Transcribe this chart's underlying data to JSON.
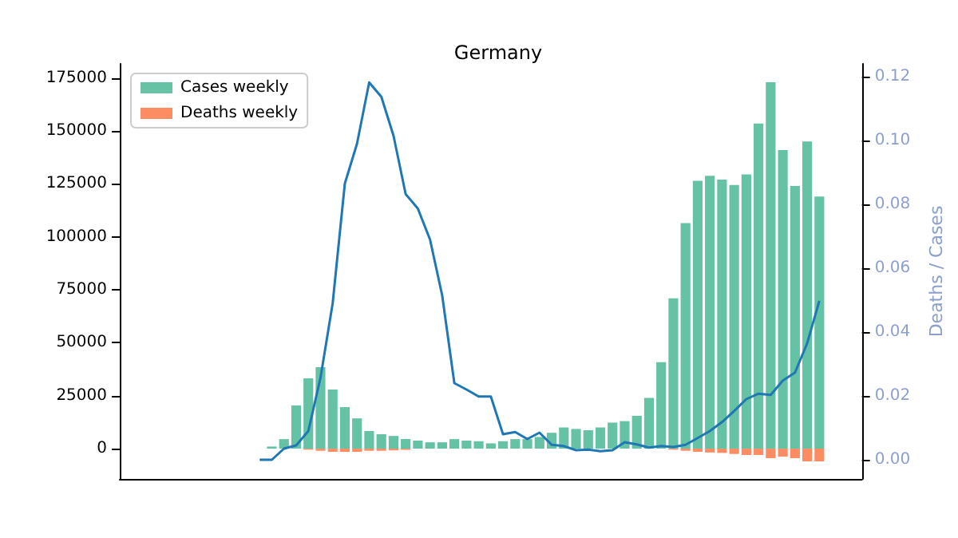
{
  "chart_data": {
    "type": "bar",
    "title": "Germany",
    "y2label": "Deaths / Cases",
    "categories": [
      null,
      null,
      null,
      null,
      null,
      null,
      null,
      null,
      null,
      null,
      null,
      null,
      null,
      null,
      null,
      null,
      null,
      null,
      null,
      null,
      null,
      null,
      null,
      null,
      null,
      null,
      null,
      null,
      null,
      null,
      null,
      null,
      null,
      null,
      null,
      null,
      null,
      null,
      null,
      null,
      null,
      null,
      null,
      null,
      null,
      null,
      null,
      null,
      null,
      null,
      null,
      null,
      null,
      null,
      null,
      null,
      null,
      null,
      null,
      null,
      null
    ],
    "stacked": true,
    "series": [
      {
        "name": "Cases weekly",
        "color": "#66c2a5",
        "values": [
          null,
          null,
          null,
          null,
          null,
          null,
          null,
          null,
          null,
          null,
          null,
          null,
          1000,
          4500,
          20400,
          33200,
          38500,
          27900,
          19600,
          14300,
          8300,
          6800,
          6000,
          4500,
          3800,
          3000,
          3000,
          4500,
          3800,
          3500,
          2500,
          3500,
          4500,
          4500,
          5500,
          7500,
          10000,
          9300,
          8700,
          10000,
          12300,
          13000,
          15500,
          24000,
          40800,
          71000,
          106500,
          126500,
          128800,
          127000,
          124500,
          129500,
          153500,
          173000,
          141000,
          124000,
          145000,
          119000,
          null,
          null,
          null
        ]
      },
      {
        "name": "Deaths weekly",
        "color": "#fc8d62",
        "values": [
          null,
          null,
          null,
          null,
          null,
          null,
          null,
          null,
          null,
          null,
          null,
          null,
          null,
          null,
          null,
          -500,
          -1000,
          -1500,
          -1500,
          -1500,
          -1000,
          -1000,
          -800,
          -500,
          null,
          null,
          null,
          null,
          null,
          null,
          null,
          null,
          null,
          null,
          null,
          null,
          null,
          null,
          null,
          null,
          null,
          null,
          null,
          null,
          null,
          -500,
          -1000,
          -1500,
          -1800,
          -2000,
          -2500,
          -3000,
          -3000,
          -4500,
          -3800,
          -4500,
          -6000,
          -6000,
          null,
          null,
          null
        ]
      },
      {
        "type": "line",
        "axis": "y2",
        "color": "#1f77b4",
        "values": [
          null,
          null,
          null,
          null,
          null,
          null,
          null,
          null,
          null,
          null,
          null,
          0,
          0,
          0.0035,
          0.0045,
          0.009,
          0.0257,
          0.049,
          0.0865,
          0.099,
          0.1182,
          0.1137,
          0.1015,
          0.0832,
          0.0787,
          0.069,
          0.0515,
          0.024,
          0.022,
          0.0198,
          0.0198,
          0.008,
          0.0087,
          0.0065,
          0.0085,
          0.0047,
          0.0043,
          0.003,
          0.0032,
          0.0027,
          0.003,
          0.0055,
          0.0048,
          0.0038,
          0.0043,
          0.004,
          0.0047,
          0.0068,
          0.009,
          0.0118,
          0.0153,
          0.019,
          0.0207,
          0.0203,
          0.0248,
          0.0273,
          0.0365,
          0.0498,
          null,
          null,
          null
        ]
      }
    ],
    "ylim": [
      -14300,
      181700
    ],
    "yticks": [
      0,
      25000,
      50000,
      75000,
      100000,
      125000,
      150000,
      175000
    ],
    "y2lim": [
      -0.006,
      0.124
    ],
    "y2ticks": [
      {
        "value": 0,
        "label": "0.00"
      },
      0.02,
      0.04,
      0.06,
      0.08,
      {
        "value": 0.1,
        "label": "0.10"
      },
      0.12
    ],
    "legend": "top left",
    "grid": false,
    "marker": "none",
    "line_style": "solid"
  }
}
